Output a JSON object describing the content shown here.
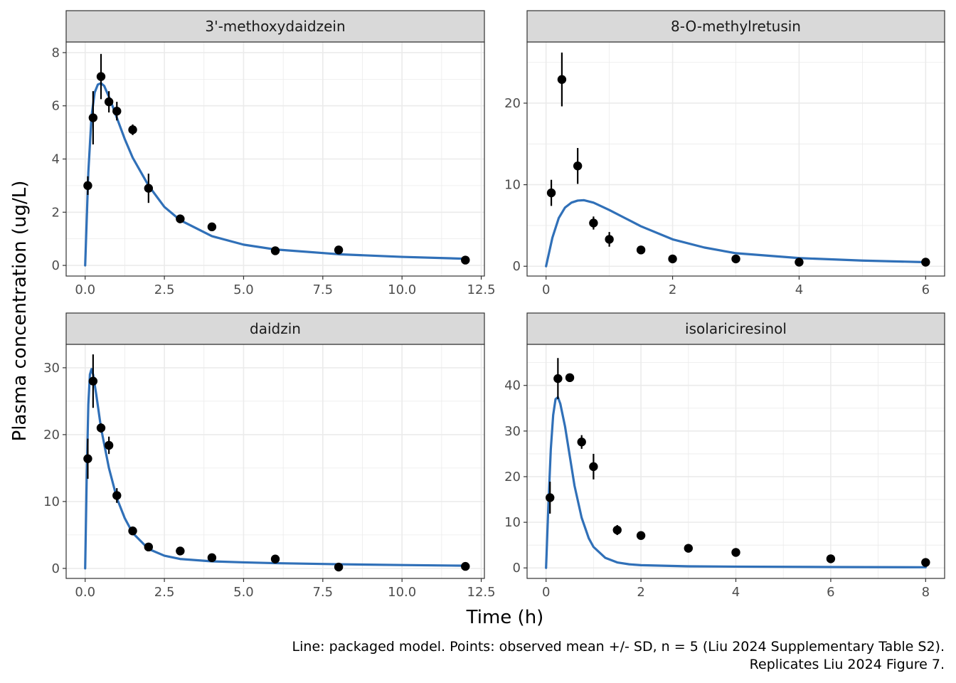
{
  "chart_data": {
    "type": "line",
    "xlabel": "Time (h)",
    "ylabel": "Plasma concentration (ug/L)",
    "caption_lines": [
      "Line: packaged model. Points: observed mean +/- SD, n = 5 (Liu 2024 Supplementary Table S2).",
      "Replicates Liu 2024 Figure 7."
    ],
    "colors": {
      "model_line": "#3070B8",
      "points": "#000000",
      "strip_bg": "#D9D9D9",
      "grid": "#EBEBEB"
    },
    "grid": true,
    "facets": [
      {
        "strip": "3'-methoxydaidzein",
        "xlim": [
          -0.6,
          12.6
        ],
        "ylim": [
          -0.4,
          8.4
        ],
        "xticks": [
          0,
          2.5,
          5,
          7.5,
          10,
          12.5
        ],
        "xtick_labels": [
          "0.0",
          "2.5",
          "5.0",
          "7.5",
          "10.0",
          "12.5"
        ],
        "yticks": [
          0,
          2,
          4,
          6,
          8
        ],
        "ytick_labels": [
          "0",
          "2",
          "4",
          "6",
          "8"
        ],
        "observed": {
          "x": [
            0.083,
            0.25,
            0.5,
            0.75,
            1,
            1.5,
            2,
            3,
            4,
            6,
            8,
            12
          ],
          "y": [
            3.0,
            5.55,
            7.1,
            6.15,
            5.8,
            5.1,
            2.9,
            1.75,
            1.45,
            0.55,
            0.58,
            0.2
          ],
          "sd": [
            0.35,
            1.0,
            0.85,
            0.4,
            0.35,
            0.2,
            0.55,
            0.1,
            0.1,
            0.06,
            0.08,
            0.05
          ]
        },
        "model": {
          "x": [
            0,
            0.1,
            0.2,
            0.3,
            0.4,
            0.5,
            0.6,
            0.8,
            1.0,
            1.25,
            1.5,
            2.0,
            2.5,
            3.0,
            4.0,
            5.0,
            6.0,
            8.0,
            10.0,
            12.0
          ],
          "y": [
            0,
            3.5,
            5.6,
            6.5,
            6.8,
            6.85,
            6.75,
            6.2,
            5.55,
            4.75,
            4.05,
            3.0,
            2.2,
            1.7,
            1.1,
            0.78,
            0.6,
            0.42,
            0.32,
            0.25
          ]
        }
      },
      {
        "strip": "8-O-methylretusin",
        "xlim": [
          -0.3,
          6.3
        ],
        "ylim": [
          -1.2,
          27.5
        ],
        "xticks": [
          0,
          2,
          4,
          6
        ],
        "xtick_labels": [
          "0",
          "2",
          "4",
          "6"
        ],
        "yticks": [
          0,
          10,
          20
        ],
        "ytick_labels": [
          "0",
          "10",
          "20"
        ],
        "observed": {
          "x": [
            0.083,
            0.25,
            0.5,
            0.75,
            1,
            1.5,
            2,
            3,
            4,
            6
          ],
          "y": [
            9.0,
            22.9,
            12.3,
            5.3,
            3.3,
            2.0,
            0.9,
            0.9,
            0.5,
            0.5
          ],
          "sd": [
            1.6,
            3.3,
            2.2,
            0.8,
            0.9,
            0.2,
            0.15,
            0.15,
            0.1,
            0.1
          ]
        },
        "model": {
          "x": [
            0,
            0.1,
            0.2,
            0.3,
            0.4,
            0.5,
            0.6,
            0.75,
            1.0,
            1.25,
            1.5,
            2.0,
            2.5,
            3.0,
            4.0,
            5.0,
            6.0
          ],
          "y": [
            0,
            3.5,
            5.9,
            7.2,
            7.8,
            8.05,
            8.1,
            7.8,
            6.9,
            5.9,
            4.9,
            3.3,
            2.3,
            1.6,
            1.0,
            0.7,
            0.5
          ]
        }
      },
      {
        "strip": "daidzin",
        "xlim": [
          -0.6,
          12.6
        ],
        "ylim": [
          -1.5,
          33.5
        ],
        "xticks": [
          0,
          2.5,
          5,
          7.5,
          10,
          12.5
        ],
        "xtick_labels": [
          "0.0",
          "2.5",
          "5.0",
          "7.5",
          "10.0",
          "12.5"
        ],
        "yticks": [
          0,
          10,
          20,
          30
        ],
        "ytick_labels": [
          "0",
          "10",
          "20",
          "30"
        ],
        "observed": {
          "x": [
            0.083,
            0.25,
            0.5,
            0.75,
            1,
            1.5,
            2,
            3,
            4,
            6,
            8,
            12
          ],
          "y": [
            16.4,
            28.0,
            21.0,
            18.4,
            10.9,
            5.6,
            3.2,
            2.6,
            1.6,
            1.4,
            0.2,
            0.3
          ],
          "sd": [
            3.0,
            4.0,
            0.7,
            1.3,
            1.1,
            0.3,
            0.3,
            0.3,
            0.3,
            0.2,
            0.1,
            0.1
          ]
        },
        "model": {
          "x": [
            0,
            0.05,
            0.1,
            0.15,
            0.2,
            0.25,
            0.35,
            0.5,
            0.75,
            1.0,
            1.25,
            1.5,
            2.0,
            2.5,
            3.0,
            4.0,
            5.0,
            6.0,
            8.0,
            10.0,
            12.0
          ],
          "y": [
            0,
            14.0,
            24.5,
            29.0,
            29.8,
            29.0,
            26.0,
            21.0,
            15.0,
            10.5,
            7.5,
            5.3,
            2.9,
            1.9,
            1.4,
            1.05,
            0.9,
            0.78,
            0.62,
            0.5,
            0.4
          ]
        }
      },
      {
        "strip": "isolariciresinol",
        "xlim": [
          -0.4,
          8.4
        ],
        "ylim": [
          -2.3,
          49.0
        ],
        "xticks": [
          0,
          2,
          4,
          6,
          8
        ],
        "xtick_labels": [
          "0",
          "2",
          "4",
          "6",
          "8"
        ],
        "yticks": [
          0,
          10,
          20,
          30,
          40
        ],
        "ytick_labels": [
          "0",
          "10",
          "20",
          "30",
          "40"
        ],
        "observed": {
          "x": [
            0.083,
            0.25,
            0.5,
            0.75,
            1,
            1.5,
            2,
            3,
            4,
            6,
            8
          ],
          "y": [
            15.4,
            41.5,
            41.7,
            27.6,
            22.2,
            8.3,
            7.1,
            4.3,
            3.4,
            2.0,
            1.2
          ],
          "sd": [
            3.5,
            4.5,
            0.8,
            1.5,
            2.8,
            1.1,
            0.4,
            0.4,
            0.4,
            0.3,
            0.2
          ]
        },
        "model": {
          "x": [
            0,
            0.05,
            0.1,
            0.15,
            0.2,
            0.25,
            0.3,
            0.4,
            0.5,
            0.6,
            0.75,
            0.9,
            1.0,
            1.25,
            1.5,
            1.75,
            2.0,
            3.0,
            4.0,
            6.0,
            8.0
          ],
          "y": [
            0,
            14.0,
            26.0,
            33.5,
            37.0,
            37.4,
            36.0,
            31.0,
            24.5,
            18.0,
            11.0,
            6.5,
            4.6,
            2.2,
            1.2,
            0.8,
            0.6,
            0.35,
            0.28,
            0.2,
            0.15
          ]
        }
      }
    ]
  }
}
